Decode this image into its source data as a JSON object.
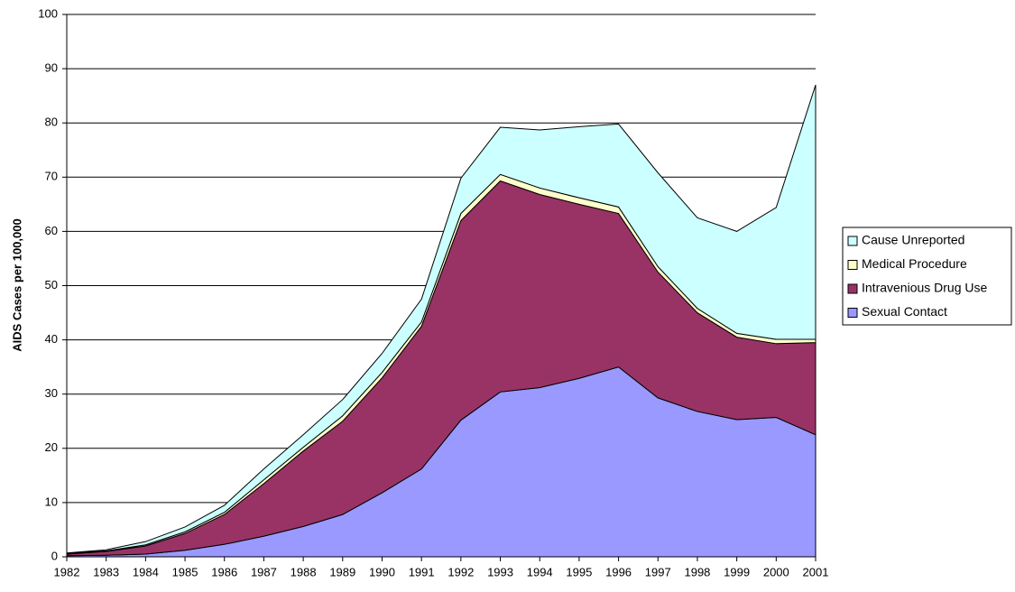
{
  "chart_data": {
    "type": "area",
    "stacked": true,
    "y_label": "AIDS Cases per 100,000",
    "categories": [
      "1982",
      "1983",
      "1984",
      "1985",
      "1986",
      "1987",
      "1988",
      "1989",
      "1990",
      "1991",
      "1992",
      "1993",
      "1994",
      "1995",
      "1996",
      "1997",
      "1998",
      "1999",
      "2000",
      "2001"
    ],
    "series": [
      {
        "name": "Sexual Contact",
        "color": "#9999ff",
        "values": [
          0.2,
          0.3,
          0.5,
          1.2,
          2.3,
          3.8,
          5.6,
          7.8,
          11.8,
          16.2,
          25.2,
          30.4,
          31.2,
          32.9,
          35.0,
          29.3,
          26.8,
          25.3,
          25.7,
          22.5
        ]
      },
      {
        "name": "Intravenious Drug Use",
        "color": "#993366",
        "values": [
          0.3,
          0.7,
          1.5,
          3.1,
          5.5,
          9.7,
          13.9,
          17.2,
          21.2,
          26.3,
          36.8,
          38.9,
          35.6,
          32.1,
          28.3,
          23.2,
          18.2,
          15.2,
          13.6,
          17.0
        ]
      },
      {
        "name": "Medical Procedure",
        "color": "#ffffcc",
        "values": [
          0.1,
          0.1,
          0.2,
          0.3,
          0.4,
          0.7,
          0.7,
          1.0,
          1.0,
          0.8,
          1.3,
          1.2,
          1.2,
          1.2,
          1.2,
          1.0,
          0.8,
          0.7,
          0.8,
          0.6
        ]
      },
      {
        "name": "Cause Unreported",
        "color": "#ccffff",
        "values": [
          0.1,
          0.2,
          0.6,
          0.9,
          1.3,
          2.0,
          2.3,
          3.0,
          3.5,
          4.2,
          6.5,
          8.7,
          10.7,
          13.1,
          15.3,
          17.3,
          16.7,
          18.8,
          24.3,
          46.9
        ]
      }
    ],
    "ylim": [
      0,
      100
    ],
    "yticks": [
      0,
      10,
      20,
      30,
      40,
      50,
      60,
      70,
      80,
      90,
      100
    ],
    "grid": true,
    "legend": "right"
  }
}
